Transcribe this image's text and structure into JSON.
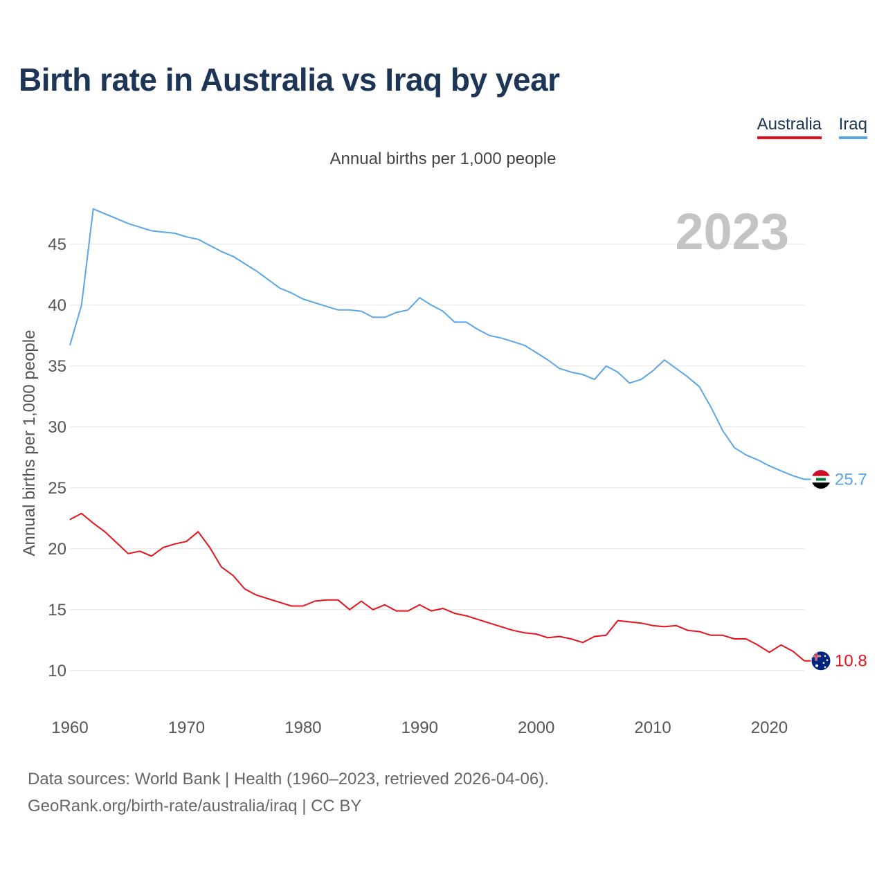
{
  "title": "Birth rate in Australia vs Iraq by year",
  "legend": {
    "australia": "Australia",
    "iraq": "Iraq"
  },
  "subtitle": "Annual births per 1,000 people",
  "colors": {
    "australia": "#e8101a",
    "iraq": "#5aa5e6",
    "title": "#1d3557",
    "year_watermark": "#c4c4c4"
  },
  "source": {
    "line1": "Data sources: World Bank | Health (1960–2023, retrieved 2026-04-06).",
    "line2": "GeoRank.org/birth-rate/australia/iraq | CC BY"
  },
  "chart_data": {
    "type": "line",
    "title": "Birth rate in Australia vs Iraq by year",
    "subtitle": "Annual births per 1,000 people",
    "xlabel": "",
    "ylabel": "Annual births per 1,000 people",
    "year_label": "2023",
    "xlim": [
      1960,
      2023
    ],
    "ylim": [
      8,
      48
    ],
    "x_ticks": [
      "1960",
      "1970",
      "1980",
      "1990",
      "2000",
      "2010",
      "2020"
    ],
    "y_ticks": [
      "10",
      "15",
      "20",
      "25",
      "30",
      "35",
      "40",
      "45"
    ],
    "grid": true,
    "x": [
      1960,
      1961,
      1962,
      1963,
      1964,
      1965,
      1966,
      1967,
      1968,
      1969,
      1970,
      1971,
      1972,
      1973,
      1974,
      1975,
      1976,
      1977,
      1978,
      1979,
      1980,
      1981,
      1982,
      1983,
      1984,
      1985,
      1986,
      1987,
      1988,
      1989,
      1990,
      1991,
      1992,
      1993,
      1994,
      1995,
      1996,
      1997,
      1998,
      1999,
      2000,
      2001,
      2002,
      2003,
      2004,
      2005,
      2006,
      2007,
      2008,
      2009,
      2010,
      2011,
      2012,
      2013,
      2014,
      2015,
      2016,
      2017,
      2018,
      2019,
      2020,
      2021,
      2022,
      2023
    ],
    "series": [
      {
        "name": "Iraq",
        "end_label": "25.7",
        "values": [
          36.7,
          40.0,
          47.9,
          47.5,
          47.1,
          46.7,
          46.4,
          46.1,
          46.0,
          45.9,
          45.6,
          45.4,
          44.9,
          44.4,
          44.0,
          43.4,
          42.8,
          42.1,
          41.4,
          41.0,
          40.5,
          40.2,
          39.9,
          39.6,
          39.6,
          39.5,
          39.0,
          39.0,
          39.4,
          39.6,
          40.6,
          40.0,
          39.5,
          38.6,
          38.6,
          38.0,
          37.5,
          37.3,
          37.0,
          36.7,
          36.1,
          35.5,
          34.8,
          34.5,
          34.3,
          33.9,
          35.0,
          34.5,
          33.6,
          33.9,
          34.6,
          35.5,
          34.8,
          34.1,
          33.3,
          31.6,
          29.7,
          28.3,
          27.7,
          27.3,
          26.8,
          26.4,
          26.0,
          25.7
        ]
      },
      {
        "name": "Australia",
        "end_label": "10.8",
        "values": [
          22.4,
          22.9,
          22.1,
          21.4,
          20.5,
          19.6,
          19.8,
          19.4,
          20.1,
          20.4,
          20.6,
          21.4,
          20.1,
          18.5,
          17.8,
          16.7,
          16.2,
          15.9,
          15.6,
          15.3,
          15.3,
          15.7,
          15.8,
          15.8,
          15.0,
          15.7,
          15.0,
          15.4,
          14.9,
          14.9,
          15.4,
          14.9,
          15.1,
          14.7,
          14.5,
          14.2,
          13.9,
          13.6,
          13.3,
          13.1,
          13.0,
          12.7,
          12.8,
          12.6,
          12.3,
          12.8,
          12.9,
          14.1,
          14.0,
          13.9,
          13.7,
          13.6,
          13.7,
          13.3,
          13.2,
          12.9,
          12.9,
          12.6,
          12.6,
          12.1,
          11.5,
          12.1,
          11.6,
          10.8
        ]
      }
    ]
  }
}
